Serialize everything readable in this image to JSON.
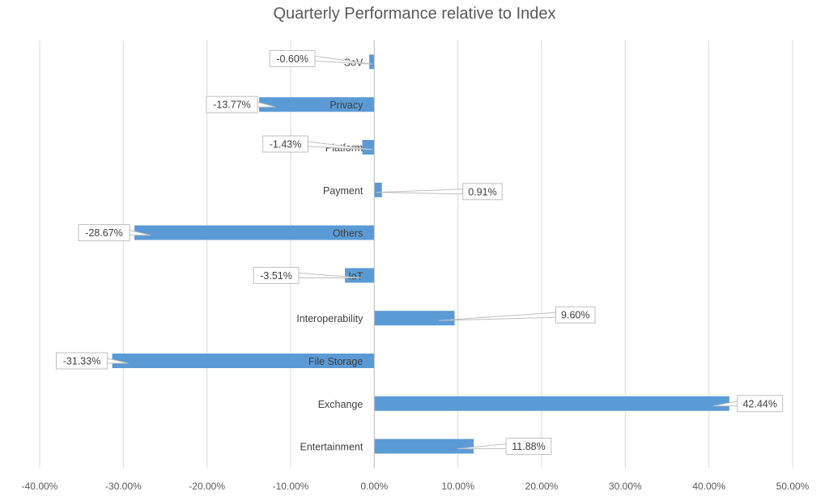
{
  "chart_data": {
    "type": "bar",
    "orientation": "horizontal",
    "title": "Quarterly Performance relative to Index",
    "xlabel": "",
    "ylabel": "",
    "xlim": [
      -40,
      50
    ],
    "x_ticks": [
      "-40.00%",
      "-30.00%",
      "-20.00%",
      "-10.00%",
      "0.00%",
      "10.00%",
      "20.00%",
      "30.00%",
      "40.00%",
      "50.00%"
    ],
    "x_tick_values": [
      -40,
      -30,
      -20,
      -10,
      0,
      10,
      20,
      30,
      40,
      50
    ],
    "grid": true,
    "bar_color": "#5B9BD5",
    "categories": [
      "SoV",
      "Privacy",
      "Platform",
      "Payment",
      "Others",
      "IoT",
      "Interoperability",
      "File Storage",
      "Exchange",
      "Entertainment"
    ],
    "values": [
      -0.6,
      -13.77,
      -1.43,
      0.91,
      -28.67,
      -3.51,
      9.6,
      -31.33,
      42.44,
      11.88
    ],
    "labels": [
      "-0.60%",
      "-13.77%",
      "-1.43%",
      "0.91%",
      "-28.67%",
      "-3.51%",
      "9.60%",
      "-31.33%",
      "42.44%",
      "11.88%"
    ]
  }
}
